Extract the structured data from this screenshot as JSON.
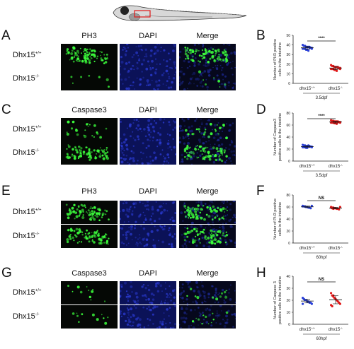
{
  "panels": {
    "A": {
      "letter": "A",
      "cols": [
        "PH3",
        "DAPI",
        "Merge"
      ],
      "rows": [
        "Dhx15",
        "Dhx15"
      ],
      "row_sup": [
        "+/+",
        "-/-"
      ]
    },
    "B": {
      "letter": "B"
    },
    "C": {
      "letter": "C",
      "cols": [
        "Caspase3",
        "DAPI",
        "Merge"
      ],
      "rows": [
        "Dhx15",
        "Dhx15"
      ],
      "row_sup": [
        "+/+",
        "-/-"
      ]
    },
    "D": {
      "letter": "D"
    },
    "E": {
      "letter": "E",
      "cols": [
        "PH3",
        "DAPI",
        "Merge"
      ],
      "rows": [
        "Dhx15",
        "Dhx15"
      ],
      "row_sup": [
        "+/+",
        "-/-"
      ]
    },
    "F": {
      "letter": "F"
    },
    "G": {
      "letter": "G",
      "cols": [
        "Caspase3",
        "DAPI",
        "Merge"
      ],
      "rows": [
        "Dhx15",
        "Dhx15"
      ],
      "row_sup": [
        "+/+",
        "-/-"
      ]
    },
    "H": {
      "letter": "H"
    }
  },
  "colors": {
    "wt": "#2a40d8",
    "mut": "#e01818",
    "fluor_green": "#3cff3c",
    "dapi_blue": "#1a2aa8"
  },
  "chart_data": [
    {
      "panel": "B",
      "type": "scatter",
      "ylabel": "Number of PH3 positive\ncells in the intestine",
      "categories": [
        "dhx15",
        "dhx15"
      ],
      "category_sup": [
        "+/+",
        "-/-"
      ],
      "stage": "3.5dpf",
      "ylim": [
        0,
        50
      ],
      "yticks": [
        0,
        10,
        20,
        30,
        40,
        50
      ],
      "significance": "****",
      "series": [
        {
          "values": [
            40,
            39,
            39,
            38,
            38,
            38,
            37,
            37,
            37,
            36,
            36,
            36,
            35,
            35,
            34,
            38,
            37,
            36
          ]
        },
        {
          "values": [
            19,
            18,
            18,
            17,
            17,
            17,
            16,
            16,
            16,
            15,
            15,
            15,
            14,
            14,
            13,
            17,
            16,
            15
          ]
        }
      ]
    },
    {
      "panel": "D",
      "type": "scatter",
      "ylabel": "Number of Caspase3\npositive cells in the intestine",
      "categories": [
        "dhx15",
        "dhx15"
      ],
      "category_sup": [
        "+/+",
        "-/-"
      ],
      "stage": "3.5dpf",
      "ylim": [
        0,
        80
      ],
      "yticks": [
        0,
        20,
        40,
        60,
        80
      ],
      "significance": "****",
      "series": [
        {
          "values": [
            27,
            26,
            26,
            25,
            25,
            25,
            24,
            24,
            24,
            23,
            23,
            23,
            22,
            22,
            26,
            25,
            24,
            23
          ]
        },
        {
          "values": [
            68,
            67,
            67,
            66,
            66,
            66,
            65,
            65,
            65,
            64,
            64,
            64,
            63,
            63,
            62,
            66,
            65,
            64
          ]
        }
      ]
    },
    {
      "panel": "F",
      "type": "scatter",
      "ylabel": "Number of PH3 positive\ncells in the intestine",
      "categories": [
        "dhx15",
        "dhx15"
      ],
      "category_sup": [
        "+/+",
        "-/-"
      ],
      "stage": "60hpf",
      "ylim": [
        0,
        80
      ],
      "yticks": [
        0,
        20,
        40,
        60,
        80
      ],
      "significance": "NS",
      "series": [
        {
          "values": [
            62,
            61,
            61,
            60,
            60,
            59,
            59,
            58,
            62,
            61
          ]
        },
        {
          "values": [
            60,
            59,
            59,
            58,
            58,
            57,
            57,
            56,
            60,
            59,
            58,
            57
          ]
        }
      ]
    },
    {
      "panel": "H",
      "type": "scatter",
      "ylabel": "Number of Caspase 3\npositive cells in the intestine",
      "categories": [
        "dhx15",
        "dhx15"
      ],
      "category_sup": [
        "+/+",
        "-/-"
      ],
      "stage": "60hpf",
      "ylim": [
        0,
        40
      ],
      "yticks": [
        0,
        10,
        20,
        30,
        40
      ],
      "significance": "NS",
      "series": [
        {
          "values": [
            22,
            21,
            20,
            20,
            19,
            19,
            18,
            18,
            17,
            17,
            21,
            20
          ]
        },
        {
          "values": [
            26,
            24,
            23,
            22,
            21,
            20,
            19,
            18,
            17,
            16,
            15,
            24
          ]
        }
      ]
    }
  ]
}
